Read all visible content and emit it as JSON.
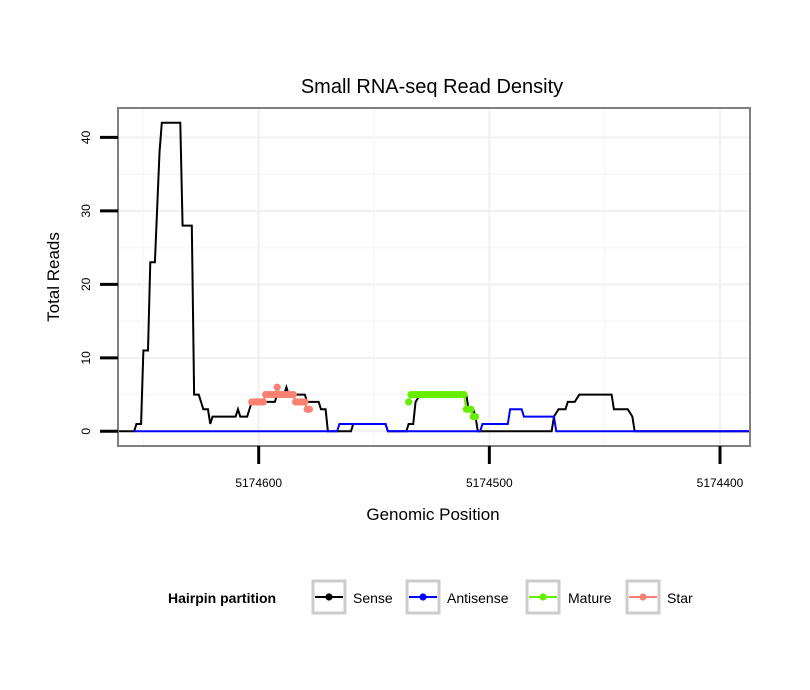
{
  "chart_data": {
    "type": "line",
    "title": "Small RNA-seq Read Density",
    "xlabel": "Genomic Position",
    "ylabel": "Total Reads",
    "x_reversed": true,
    "xlim": [
      5174661,
      5174387
    ],
    "ylim": [
      -2,
      44
    ],
    "xticks": [
      5174600,
      5174500,
      5174400
    ],
    "xtick_labels": [
      "5174600",
      "5174500",
      "5174400"
    ],
    "yticks": [
      0,
      10,
      20,
      30,
      40
    ],
    "ytick_labels": [
      "0",
      "10",
      "20",
      "30",
      "40"
    ],
    "grid": true,
    "legend": {
      "title": "Hairpin partition",
      "position": "bottom",
      "entries": [
        {
          "label": "Sense",
          "color": "#000000"
        },
        {
          "label": "Antisense",
          "color": "#0000ff"
        },
        {
          "label": "Mature",
          "color": "#66ee00"
        },
        {
          "label": "Star",
          "color": "#fa8072"
        }
      ]
    },
    "series": [
      {
        "name": "Sense",
        "color": "#000000",
        "points": [
          [
            5174661,
            0
          ],
          [
            5174654,
            0
          ],
          [
            5174653,
            1
          ],
          [
            5174651,
            1
          ],
          [
            5174650,
            11
          ],
          [
            5174648,
            11
          ],
          [
            5174647,
            23
          ],
          [
            5174645,
            23
          ],
          [
            5174643,
            38
          ],
          [
            5174642,
            42
          ],
          [
            5174634,
            42
          ],
          [
            5174633,
            28
          ],
          [
            5174629,
            28
          ],
          [
            5174628,
            5
          ],
          [
            5174626,
            5
          ],
          [
            5174624,
            3
          ],
          [
            5174622,
            3
          ],
          [
            5174621,
            1
          ],
          [
            5174620,
            2
          ],
          [
            5174610,
            2
          ],
          [
            5174609,
            3
          ],
          [
            5174608,
            2
          ],
          [
            5174605,
            2
          ],
          [
            5174604,
            3
          ],
          [
            5174603,
            4
          ],
          [
            5174593,
            4
          ],
          [
            5174592,
            5
          ],
          [
            5174589,
            5
          ],
          [
            5174588,
            6
          ],
          [
            5174587,
            5
          ],
          [
            5174580,
            5
          ],
          [
            5174579,
            4
          ],
          [
            5174574,
            4
          ],
          [
            5174573,
            3
          ],
          [
            5174571,
            3
          ],
          [
            5174570,
            0
          ],
          [
            5174560,
            0
          ],
          [
            5174559,
            1
          ],
          [
            5174545,
            1
          ],
          [
            5174544,
            0
          ],
          [
            5174536,
            0
          ],
          [
            5174535,
            1
          ],
          [
            5174533,
            1
          ],
          [
            5174532,
            4
          ],
          [
            5174530,
            5
          ],
          [
            5174510,
            5
          ],
          [
            5174509,
            3
          ],
          [
            5174507,
            3
          ],
          [
            5174506,
            2
          ],
          [
            5174505,
            0
          ],
          [
            5174490,
            0
          ],
          [
            5174480,
            0
          ],
          [
            5174473,
            0
          ],
          [
            5174472,
            2
          ],
          [
            5174470,
            3
          ],
          [
            5174467,
            3
          ],
          [
            5174466,
            4
          ],
          [
            5174463,
            4
          ],
          [
            5174461,
            5
          ],
          [
            5174447,
            5
          ],
          [
            5174446,
            3
          ],
          [
            5174440,
            3
          ],
          [
            5174438,
            2
          ],
          [
            5174437,
            0
          ],
          [
            5174387,
            0
          ]
        ]
      },
      {
        "name": "Antisense",
        "color": "#0000ff",
        "points": [
          [
            5174654,
            0
          ],
          [
            5174566,
            0
          ],
          [
            5174565,
            1
          ],
          [
            5174545,
            1
          ],
          [
            5174544,
            0
          ],
          [
            5174504,
            0
          ],
          [
            5174503,
            1
          ],
          [
            5174492,
            1
          ],
          [
            5174491,
            3
          ],
          [
            5174486,
            3
          ],
          [
            5174485,
            2
          ],
          [
            5174472,
            2
          ],
          [
            5174471,
            0
          ],
          [
            5174387,
            0
          ]
        ]
      },
      {
        "name": "Mature",
        "color": "#66ee00",
        "points": [
          [
            5174535,
            4
          ],
          [
            5174534,
            5
          ],
          [
            5174533,
            5
          ],
          [
            5174532,
            5
          ],
          [
            5174531,
            5
          ],
          [
            5174530,
            5
          ],
          [
            5174529,
            5
          ],
          [
            5174528,
            5
          ],
          [
            5174527,
            5
          ],
          [
            5174526,
            5
          ],
          [
            5174525,
            5
          ],
          [
            5174524,
            5
          ],
          [
            5174523,
            5
          ],
          [
            5174522,
            5
          ],
          [
            5174521,
            5
          ],
          [
            5174520,
            5
          ],
          [
            5174519,
            5
          ],
          [
            5174518,
            5
          ],
          [
            5174517,
            5
          ],
          [
            5174516,
            5
          ],
          [
            5174515,
            5
          ],
          [
            5174514,
            5
          ],
          [
            5174513,
            5
          ],
          [
            5174512,
            5
          ],
          [
            5174511,
            5
          ],
          [
            5174510,
            3
          ],
          [
            5174509,
            3
          ],
          [
            5174508,
            3
          ],
          [
            5174507,
            2
          ],
          [
            5174506,
            2
          ]
        ]
      },
      {
        "name": "Star",
        "color": "#fa8072",
        "points": [
          [
            5174603,
            4
          ],
          [
            5174602,
            4
          ],
          [
            5174601,
            4
          ],
          [
            5174600,
            4
          ],
          [
            5174599,
            4
          ],
          [
            5174598,
            4
          ],
          [
            5174597,
            5
          ],
          [
            5174596,
            5
          ],
          [
            5174595,
            5
          ],
          [
            5174594,
            5
          ],
          [
            5174593,
            5
          ],
          [
            5174592,
            6
          ],
          [
            5174591,
            5
          ],
          [
            5174590,
            5
          ],
          [
            5174589,
            5
          ],
          [
            5174588,
            5
          ],
          [
            5174587,
            5
          ],
          [
            5174586,
            5
          ],
          [
            5174585,
            5
          ],
          [
            5174584,
            4
          ],
          [
            5174583,
            4
          ],
          [
            5174582,
            4
          ],
          [
            5174581,
            4
          ],
          [
            5174580,
            4
          ],
          [
            5174579,
            3
          ],
          [
            5174578,
            3
          ]
        ]
      }
    ]
  }
}
